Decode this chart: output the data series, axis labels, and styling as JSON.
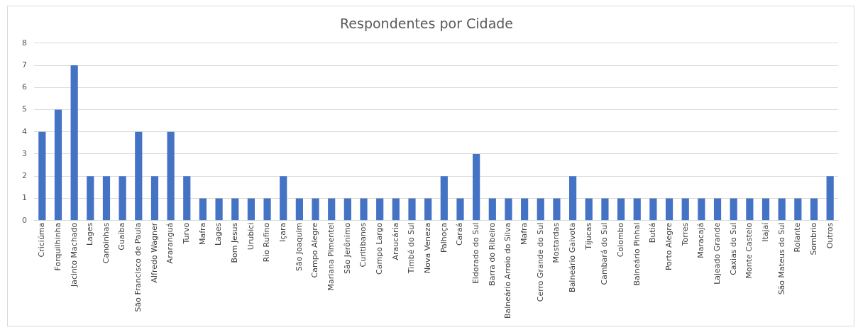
{
  "chart_data": {
    "type": "bar",
    "title": "Respondentes por Cidade",
    "categories": [
      "Criciúma",
      "Forquilhinha",
      "Jacinto Machado",
      "Lages",
      "Canoinhas",
      "Guaíba",
      "São Francisco de Paula",
      "Alfredo Wagner",
      "Araranguá",
      "Turvo",
      "Mafra",
      "Lages",
      "Bom Jesus",
      "Urubici",
      "Rio Rufino",
      "Içara",
      "São Joaquim",
      "Campo Alegre",
      "Mariana Pimentel",
      "São Jerônimo",
      "Curitibanos",
      "Campo Largo",
      "Araucária",
      "Timbé do Sul",
      "Nova Veneza",
      "Palhoça",
      "Caraá",
      "Eldorado do Sul",
      "Barra do Ribeiro",
      "Balneário Arroio do Silva",
      "Mafra",
      "Cerro Grande do Sul",
      "Mostardas",
      "Balneário Gaivota",
      "Tijucas",
      "Cambará do Sul",
      "Colombo",
      "Balneário Pinhal",
      "Butiá",
      "Porto Alegre",
      "Torres",
      "Maracajá",
      "Lajeado Grande",
      "Caxias do Sul",
      "Monte Castelo",
      "Itajaí",
      "São Mateus do Sul",
      "Rolante",
      "Sombrio",
      "Outros"
    ],
    "values": [
      4,
      5,
      7,
      2,
      2,
      2,
      4,
      2,
      4,
      2,
      1,
      1,
      1,
      1,
      1,
      2,
      1,
      1,
      1,
      1,
      1,
      1,
      1,
      1,
      1,
      2,
      1,
      3,
      1,
      1,
      1,
      1,
      1,
      2,
      1,
      1,
      1,
      1,
      1,
      1,
      1,
      1,
      1,
      1,
      1,
      1,
      1,
      1,
      1,
      2
    ],
    "color": "#4472c4",
    "ylim": [
      0,
      8
    ],
    "yticks": [
      0,
      1,
      2,
      3,
      4,
      5,
      6,
      7,
      8
    ],
    "grid": "y",
    "legend": false
  }
}
